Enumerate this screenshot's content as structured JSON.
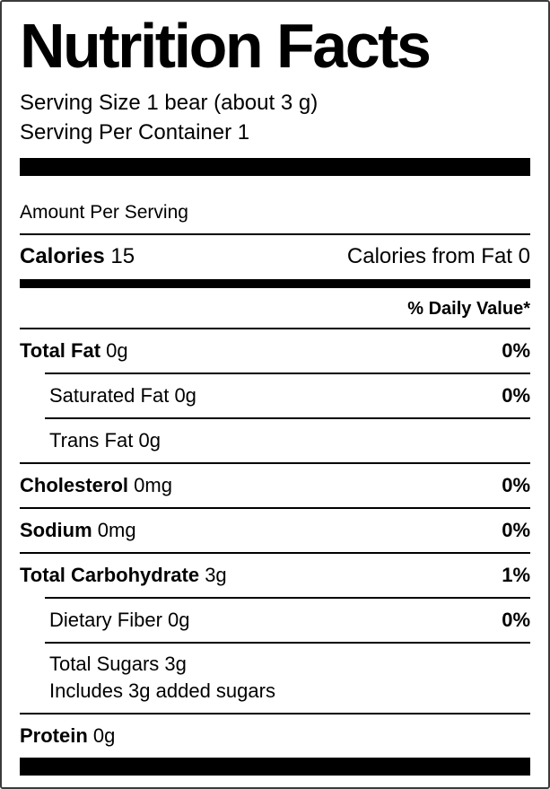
{
  "label": {
    "title": "Nutrition Facts",
    "serving_size": "Serving Size 1 bear (about 3 g)",
    "servings_per_container": "Serving Per Container 1",
    "amount_per_serving": "Amount Per Serving",
    "calories": {
      "label": "Calories",
      "value": "15",
      "from_fat_label": "Calories from Fat",
      "from_fat_value": "0"
    },
    "daily_value_header": "% Daily Value*",
    "rows": [
      {
        "label": "Total Fat",
        "amount": "0g",
        "dv": "0%"
      },
      {
        "label": "Saturated Fat",
        "amount": "0g",
        "dv": "0%"
      },
      {
        "label": "Trans Fat",
        "amount": "0g",
        "dv": ""
      },
      {
        "label": "Cholesterol",
        "amount": "0mg",
        "dv": "0%"
      },
      {
        "label": "Sodium",
        "amount": "0mg",
        "dv": "0%"
      },
      {
        "label": "Total Carbohydrate",
        "amount": "3g",
        "dv": "1%"
      },
      {
        "label": "Dietary Fiber",
        "amount": "0g",
        "dv": "0%"
      },
      {
        "label": "Total Sugars",
        "amount": "3g",
        "dv": ""
      },
      {
        "label": "Includes 3g added sugars",
        "amount": "",
        "dv": ""
      },
      {
        "label": "Protein",
        "amount": "0g",
        "dv": ""
      }
    ],
    "colors": {
      "text": "#000000",
      "rule": "#000000",
      "border": "#3b3b3b",
      "background": "#ffffff"
    }
  }
}
